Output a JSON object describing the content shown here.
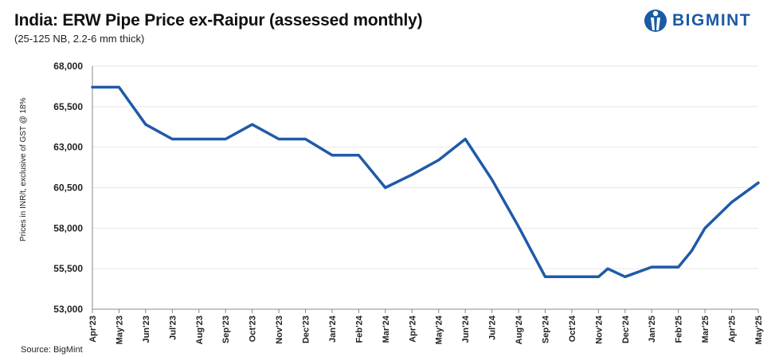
{
  "header": {
    "title": "India: ERW Pipe Price ex-Raipur (assessed monthly)",
    "subtitle": "(25-125 NB, 2.2-6 mm thick)"
  },
  "brand": {
    "name": "BIGMINT",
    "color": "#1b5aa6",
    "icon": "bigmint-logo-icon"
  },
  "footer": {
    "source": "Source: BigMint"
  },
  "chart_data": {
    "type": "line",
    "ylabel": "Prices in INR/t, exclusive of GST @ 18%",
    "ylim": [
      53000,
      68000
    ],
    "y_ticks": [
      53000,
      55500,
      58000,
      60500,
      63000,
      65500,
      68000
    ],
    "y_tick_labels": [
      "53,000",
      "55,500",
      "58,000",
      "60,500",
      "63,000",
      "65,500",
      "68,000"
    ],
    "x_tick_labels": [
      "Apr'23",
      "May'23",
      "Jun'23",
      "Jul'23",
      "Aug'23",
      "Sep'23",
      "Oct'23",
      "Nov'23",
      "Dec'23",
      "Jan'24",
      "Feb'24",
      "Mar'24",
      "Apr'24",
      "May'24",
      "Jun'24",
      "Jul'24",
      "Aug'24",
      "Sep'24",
      "Oct'24",
      "Nov'24",
      "Dec'24",
      "Jan'25",
      "Feb'25",
      "Mar'25",
      "Apr'25",
      "May'25"
    ],
    "grid": {
      "horizontal": true,
      "vertical": false
    },
    "series": [
      {
        "color": "#1f5aa8",
        "points": [
          [
            0,
            66700
          ],
          [
            1,
            66700
          ],
          [
            2,
            64400
          ],
          [
            3,
            63500
          ],
          [
            4,
            63500
          ],
          [
            5,
            63500
          ],
          [
            6,
            64400
          ],
          [
            7,
            63500
          ],
          [
            8,
            63500
          ],
          [
            9,
            62500
          ],
          [
            10,
            62500
          ],
          [
            11,
            60500
          ],
          [
            12,
            61300
          ],
          [
            13,
            62200
          ],
          [
            14,
            63500
          ],
          [
            15,
            61000
          ],
          [
            16,
            58100
          ],
          [
            17,
            55000
          ],
          [
            18,
            55000
          ],
          [
            19,
            55000
          ],
          [
            19.35,
            55500
          ],
          [
            20,
            55000
          ],
          [
            21,
            55600
          ],
          [
            22,
            55600
          ],
          [
            22.5,
            56600
          ],
          [
            23,
            58000
          ],
          [
            24,
            59600
          ],
          [
            25,
            60800
          ]
        ]
      }
    ]
  }
}
